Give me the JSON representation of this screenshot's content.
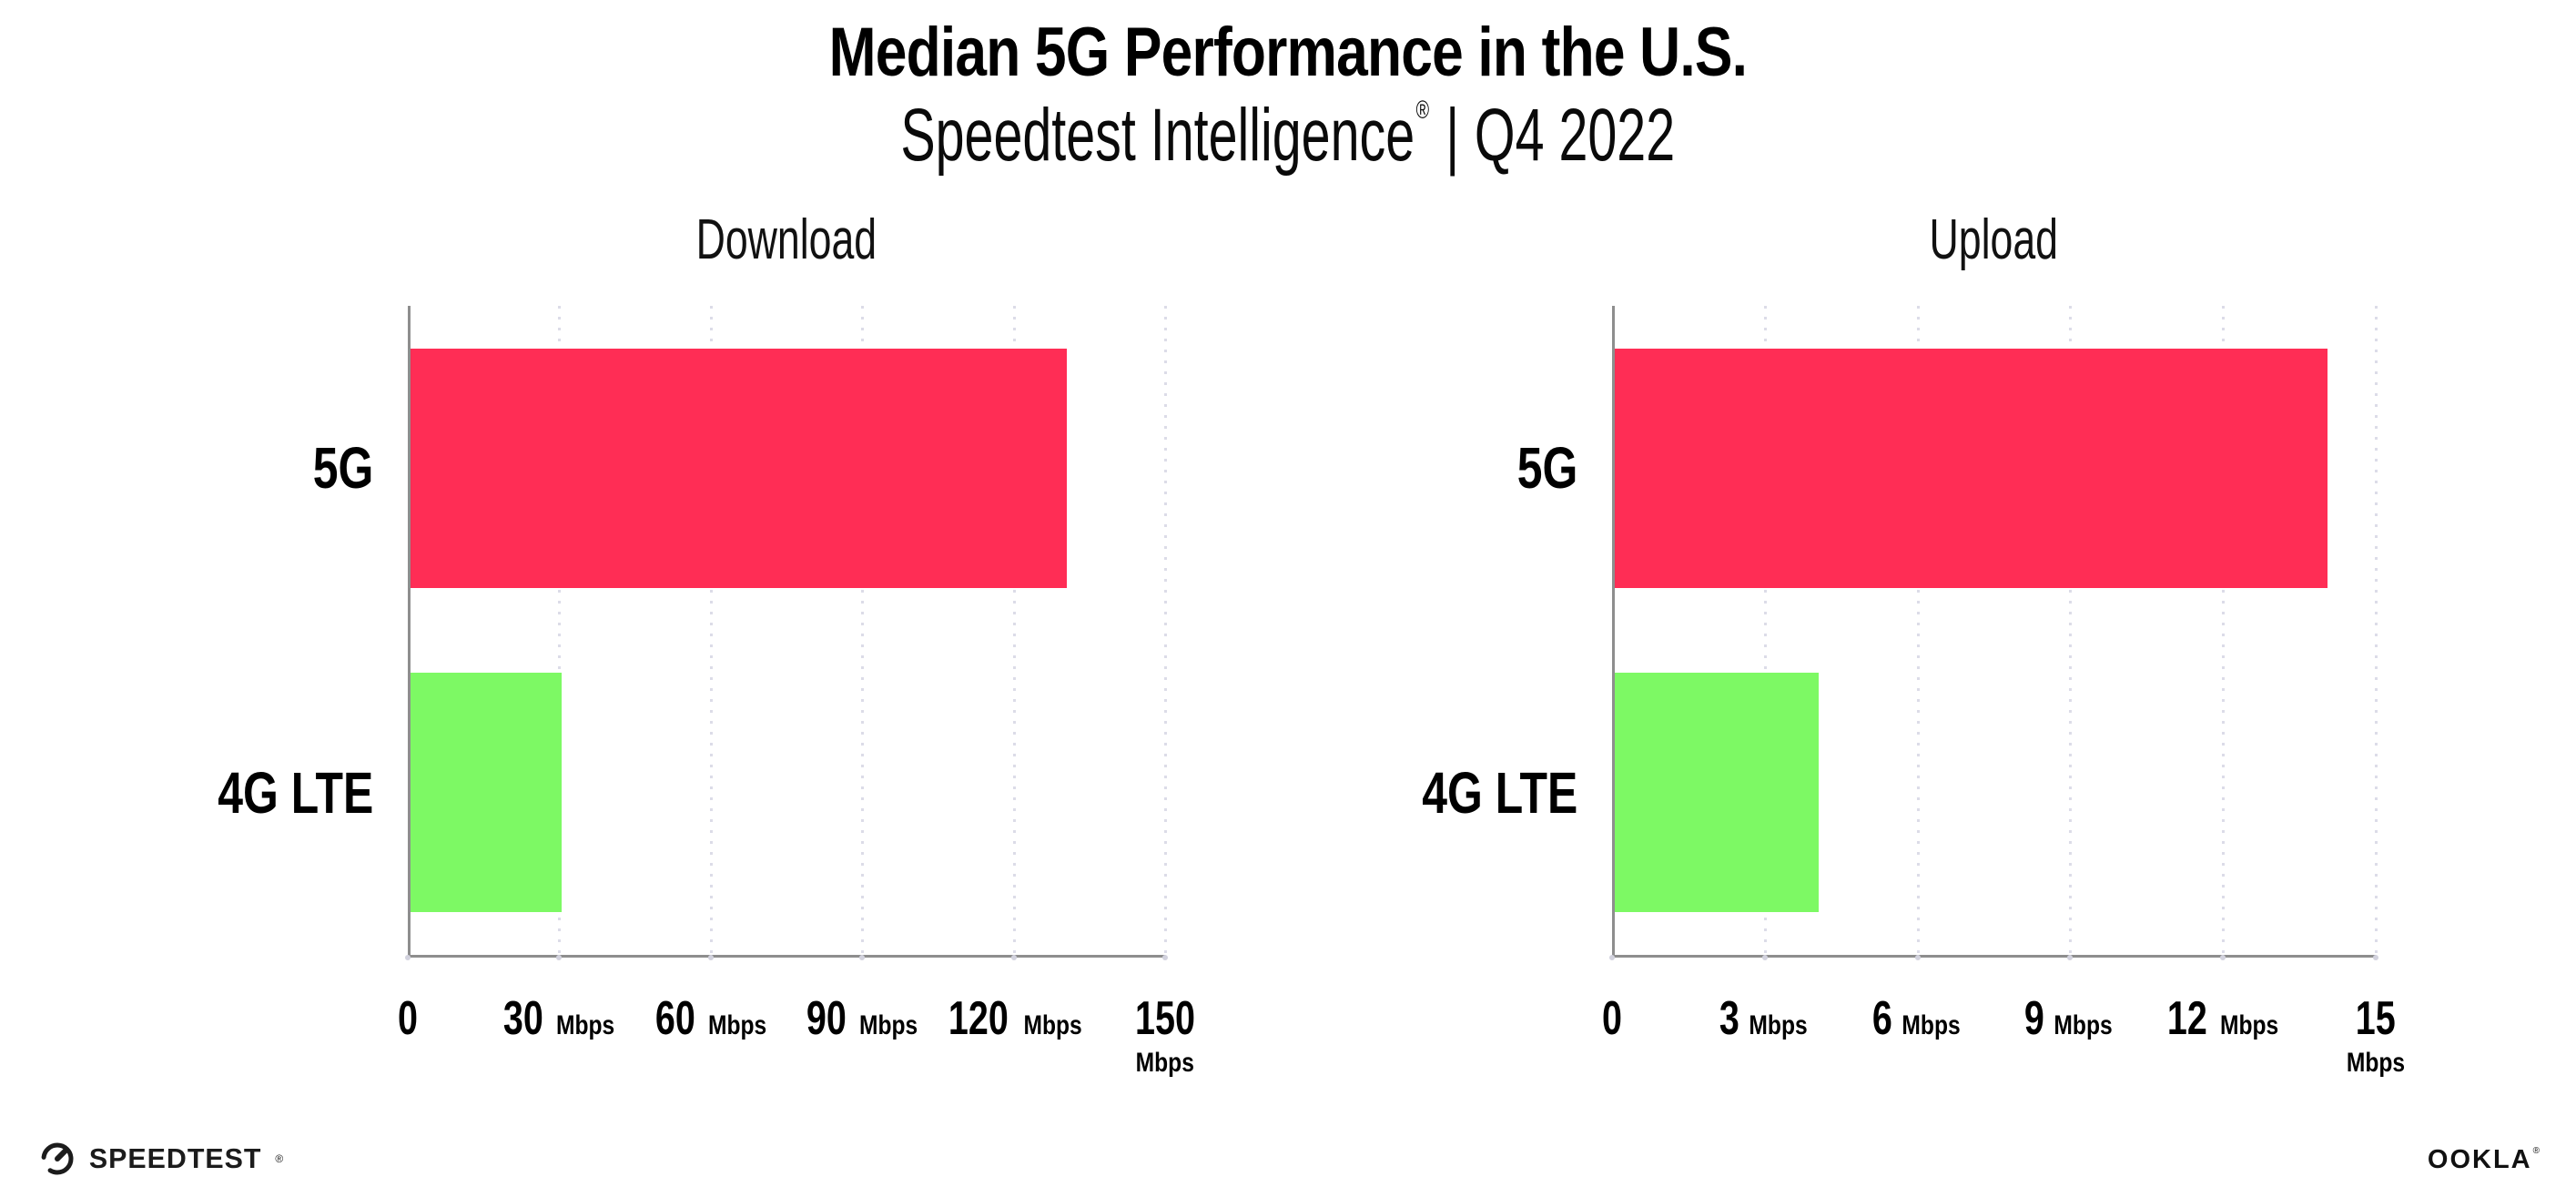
{
  "page": {
    "title": "Median 5G Performance in the U.S.",
    "subtitle_brand": "Speedtest Intelligence",
    "subtitle_reg": "®",
    "subtitle_divider": "|",
    "subtitle_period": "Q4 2022",
    "background_color": "#ffffff"
  },
  "colors": {
    "bar_5g": "#FF2D55",
    "bar_4g_lte": "#7DF964",
    "axis": "#8e8e8e",
    "gridline": "#dcdce8",
    "text": "#000000"
  },
  "chart_data": [
    {
      "type": "bar",
      "orientation": "horizontal",
      "title": "Download",
      "categories": [
        "5G",
        "4G LTE"
      ],
      "values": [
        130,
        30
      ],
      "unit": "Mbps",
      "xlim": [
        0,
        150
      ],
      "xticks": [
        0,
        30,
        60,
        90,
        120,
        150
      ],
      "tick_unit_label": "Mbps",
      "bar_colors": [
        "#FF2D55",
        "#7DF964"
      ],
      "grid": "dotted-vertical",
      "legend": "none"
    },
    {
      "type": "bar",
      "orientation": "horizontal",
      "title": "Upload",
      "categories": [
        "5G",
        "4G LTE"
      ],
      "values": [
        14,
        4
      ],
      "unit": "Mbps",
      "xlim": [
        0,
        15
      ],
      "xticks": [
        0,
        3,
        6,
        9,
        12,
        15
      ],
      "tick_unit_label": "Mbps",
      "bar_colors": [
        "#FF2D55",
        "#7DF964"
      ],
      "grid": "dotted-vertical",
      "legend": "none"
    }
  ],
  "footer": {
    "speedtest_logo_text": "SPEEDTEST",
    "speedtest_reg": "®",
    "ookla_logo_text": "OOKLA",
    "ookla_reg": "®"
  }
}
